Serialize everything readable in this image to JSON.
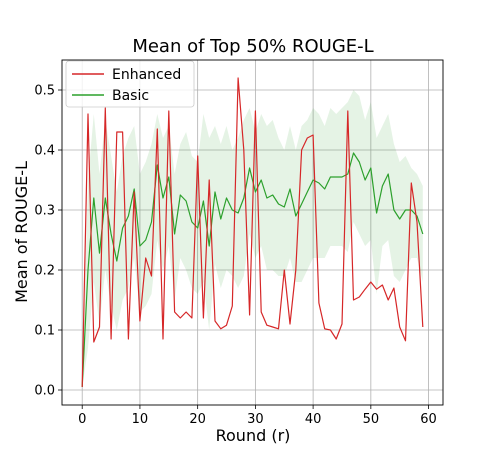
{
  "chart_data": {
    "type": "line",
    "title": "Mean of Top 50% ROUGE-L",
    "xlabel": "Round (r)",
    "ylabel": "Mean of ROUGE-L",
    "xlim": [
      -3.5,
      62.5
    ],
    "ylim": [
      -0.025,
      0.55
    ],
    "xticks": [
      0,
      10,
      20,
      30,
      40,
      50,
      60
    ],
    "yticks": [
      0.0,
      0.1,
      0.2,
      0.3,
      0.4,
      0.5
    ],
    "ytick_labels": [
      "0.0",
      "0.1",
      "0.2",
      "0.3",
      "0.4",
      "0.5"
    ],
    "grid": true,
    "legend_position": "top-left",
    "series": [
      {
        "name": "Enhanced",
        "color": "#d62728",
        "x": [
          0,
          1,
          2,
          3,
          4,
          5,
          6,
          7,
          8,
          9,
          10,
          11,
          12,
          13,
          14,
          15,
          16,
          17,
          18,
          19,
          20,
          21,
          22,
          23,
          24,
          25,
          26,
          27,
          28,
          29,
          30,
          31,
          32,
          33,
          34,
          35,
          36,
          37,
          38,
          39,
          40,
          41,
          42,
          43,
          44,
          45,
          46,
          47,
          48,
          49,
          50,
          51,
          52,
          53,
          54,
          55,
          56,
          57,
          58,
          59
        ],
        "values": [
          0.005,
          0.46,
          0.08,
          0.105,
          0.47,
          0.085,
          0.43,
          0.43,
          0.085,
          0.33,
          0.115,
          0.22,
          0.19,
          0.435,
          0.085,
          0.465,
          0.13,
          0.12,
          0.13,
          0.12,
          0.39,
          0.12,
          0.35,
          0.115,
          0.102,
          0.108,
          0.14,
          0.52,
          0.4,
          0.125,
          0.465,
          0.13,
          0.108,
          0.105,
          0.102,
          0.2,
          0.11,
          0.2,
          0.4,
          0.42,
          0.425,
          0.145,
          0.102,
          0.1,
          0.085,
          0.11,
          0.465,
          0.15,
          0.155,
          0.168,
          0.18,
          0.168,
          0.175,
          0.15,
          0.17,
          0.105,
          0.082,
          0.345,
          0.28,
          0.105
        ]
      },
      {
        "name": "Basic",
        "color": "#2ca02c",
        "band_color": "#2ca02c",
        "x": [
          0,
          1,
          2,
          3,
          4,
          5,
          6,
          7,
          8,
          9,
          10,
          11,
          12,
          13,
          14,
          15,
          16,
          17,
          18,
          19,
          20,
          21,
          22,
          23,
          24,
          25,
          26,
          27,
          28,
          29,
          30,
          31,
          32,
          33,
          34,
          35,
          36,
          37,
          38,
          39,
          40,
          41,
          42,
          43,
          44,
          45,
          46,
          47,
          48,
          49,
          50,
          51,
          52,
          53,
          54,
          55,
          56,
          57,
          58,
          59
        ],
        "values": [
          0.005,
          0.2,
          0.32,
          0.228,
          0.32,
          0.26,
          0.215,
          0.27,
          0.29,
          0.335,
          0.24,
          0.25,
          0.28,
          0.375,
          0.32,
          0.355,
          0.26,
          0.325,
          0.315,
          0.28,
          0.27,
          0.315,
          0.24,
          0.33,
          0.285,
          0.32,
          0.3,
          0.295,
          0.32,
          0.37,
          0.33,
          0.35,
          0.32,
          0.325,
          0.31,
          0.305,
          0.335,
          0.29,
          0.31,
          0.33,
          0.35,
          0.345,
          0.335,
          0.355,
          0.355,
          0.355,
          0.36,
          0.395,
          0.38,
          0.35,
          0.37,
          0.295,
          0.34,
          0.36,
          0.3,
          0.285,
          0.3,
          0.3,
          0.29,
          0.26
        ],
        "upper": [
          0.005,
          0.35,
          0.46,
          0.36,
          0.45,
          0.39,
          0.33,
          0.39,
          0.42,
          0.44,
          0.36,
          0.38,
          0.41,
          0.46,
          0.42,
          0.44,
          0.36,
          0.41,
          0.43,
          0.39,
          0.38,
          0.46,
          0.42,
          0.44,
          0.41,
          0.44,
          0.4,
          0.42,
          0.45,
          0.47,
          0.43,
          0.46,
          0.44,
          0.45,
          0.42,
          0.4,
          0.44,
          0.4,
          0.44,
          0.45,
          0.47,
          0.46,
          0.44,
          0.47,
          0.46,
          0.47,
          0.48,
          0.5,
          0.49,
          0.45,
          0.48,
          0.42,
          0.44,
          0.46,
          0.41,
          0.38,
          0.39,
          0.37,
          0.36,
          0.34
        ],
        "lower": [
          0.005,
          0.07,
          0.18,
          0.11,
          0.2,
          0.14,
          0.1,
          0.15,
          0.17,
          0.22,
          0.13,
          0.14,
          0.16,
          0.25,
          0.2,
          0.24,
          0.15,
          0.22,
          0.2,
          0.17,
          0.16,
          0.18,
          0.1,
          0.21,
          0.17,
          0.2,
          0.19,
          0.17,
          0.19,
          0.26,
          0.22,
          0.24,
          0.2,
          0.2,
          0.19,
          0.19,
          0.22,
          0.18,
          0.18,
          0.2,
          0.22,
          0.22,
          0.22,
          0.24,
          0.24,
          0.24,
          0.23,
          0.28,
          0.26,
          0.24,
          0.25,
          0.16,
          0.24,
          0.25,
          0.19,
          0.18,
          0.2,
          0.22,
          0.22,
          0.18
        ]
      }
    ]
  }
}
